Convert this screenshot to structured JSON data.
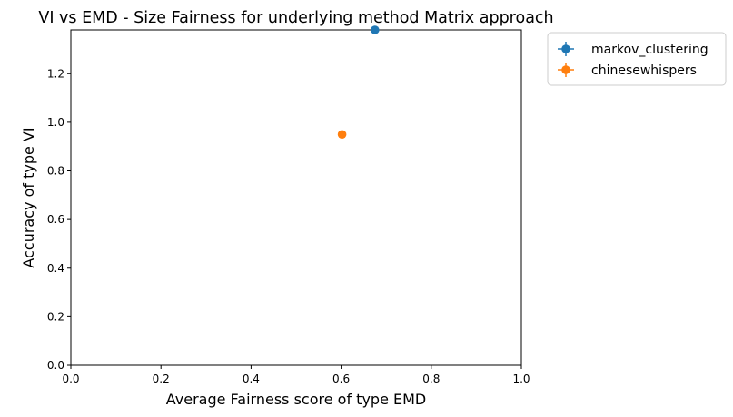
{
  "chart_data": {
    "type": "scatter",
    "title": "VI vs EMD - Size Fairness for underlying method Matrix approach",
    "xlabel": "Average Fairness score of type EMD",
    "ylabel": "Accuracy of type VI",
    "xlim": [
      0.0,
      1.0
    ],
    "ylim": [
      0.0,
      1.38
    ],
    "xticks": [
      "0.0",
      "0.2",
      "0.4",
      "0.6",
      "0.8",
      "1.0"
    ],
    "yticks": [
      "0.0",
      "0.2",
      "0.4",
      "0.6",
      "0.8",
      "1.0",
      "1.2"
    ],
    "grid": false,
    "legend_position": "outside-top-right",
    "series": [
      {
        "name": "markov_clustering",
        "color": "#1f77b4",
        "x": [
          0.675
        ],
        "y": [
          1.38
        ]
      },
      {
        "name": "chinesewhispers",
        "color": "#ff7f0e",
        "x": [
          0.602
        ],
        "y": [
          0.95
        ]
      }
    ]
  }
}
